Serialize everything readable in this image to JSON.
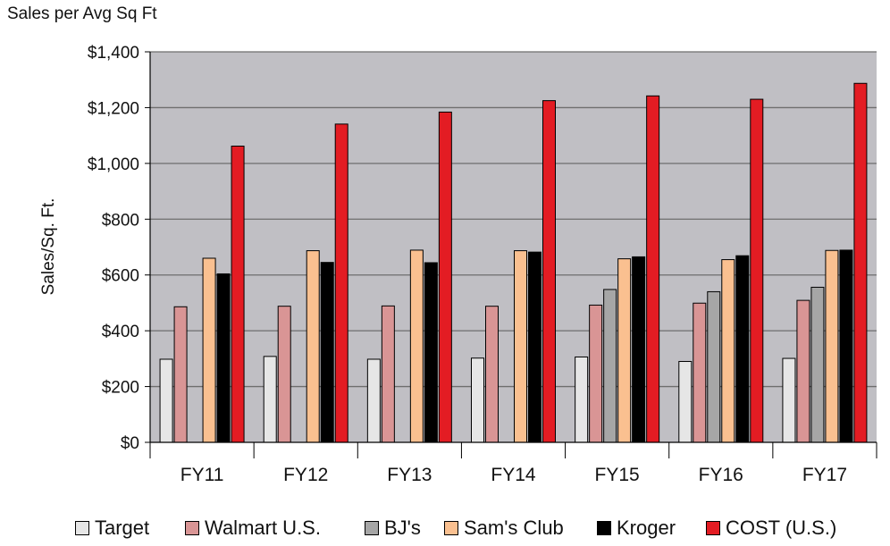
{
  "chart_data": {
    "type": "bar",
    "title": "Sales per Avg Sq Ft",
    "xlabel": "",
    "ylabel": "Sales/Sq. Ft.",
    "ylim": [
      0,
      1400
    ],
    "yticks": [
      0,
      200,
      400,
      600,
      800,
      1000,
      1200,
      1400
    ],
    "ytick_labels": [
      "$0",
      "$200",
      "$400",
      "$600",
      "$800",
      "$1,000",
      "$1,200",
      "$1,400"
    ],
    "grid": true,
    "legend_position": "bottom",
    "categories": [
      "FY11",
      "FY12",
      "FY13",
      "FY14",
      "FY15",
      "FY16",
      "FY17"
    ],
    "series": [
      {
        "name": "Target",
        "color": "#e6e6e6",
        "values": [
          298,
          308,
          298,
          302,
          306,
          290,
          301
        ]
      },
      {
        "name": "Walmart U.S.",
        "color": "#d99595",
        "values": [
          486,
          488,
          489,
          488,
          492,
          499,
          509
        ]
      },
      {
        "name": "BJ's",
        "color": "#a6a6a6",
        "values": [
          null,
          null,
          null,
          null,
          548,
          540,
          556
        ]
      },
      {
        "name": "Sam's Club",
        "color": "#fac090",
        "values": [
          660,
          687,
          689,
          687,
          658,
          655,
          688
        ]
      },
      {
        "name": "Kroger",
        "color": "#000000",
        "values": [
          604,
          645,
          644,
          682,
          665,
          669,
          689
        ]
      },
      {
        "name": "COST (U.S.)",
        "color": "#e31c23",
        "values": [
          1062,
          1141,
          1184,
          1225,
          1242,
          1230,
          1287
        ]
      }
    ]
  }
}
